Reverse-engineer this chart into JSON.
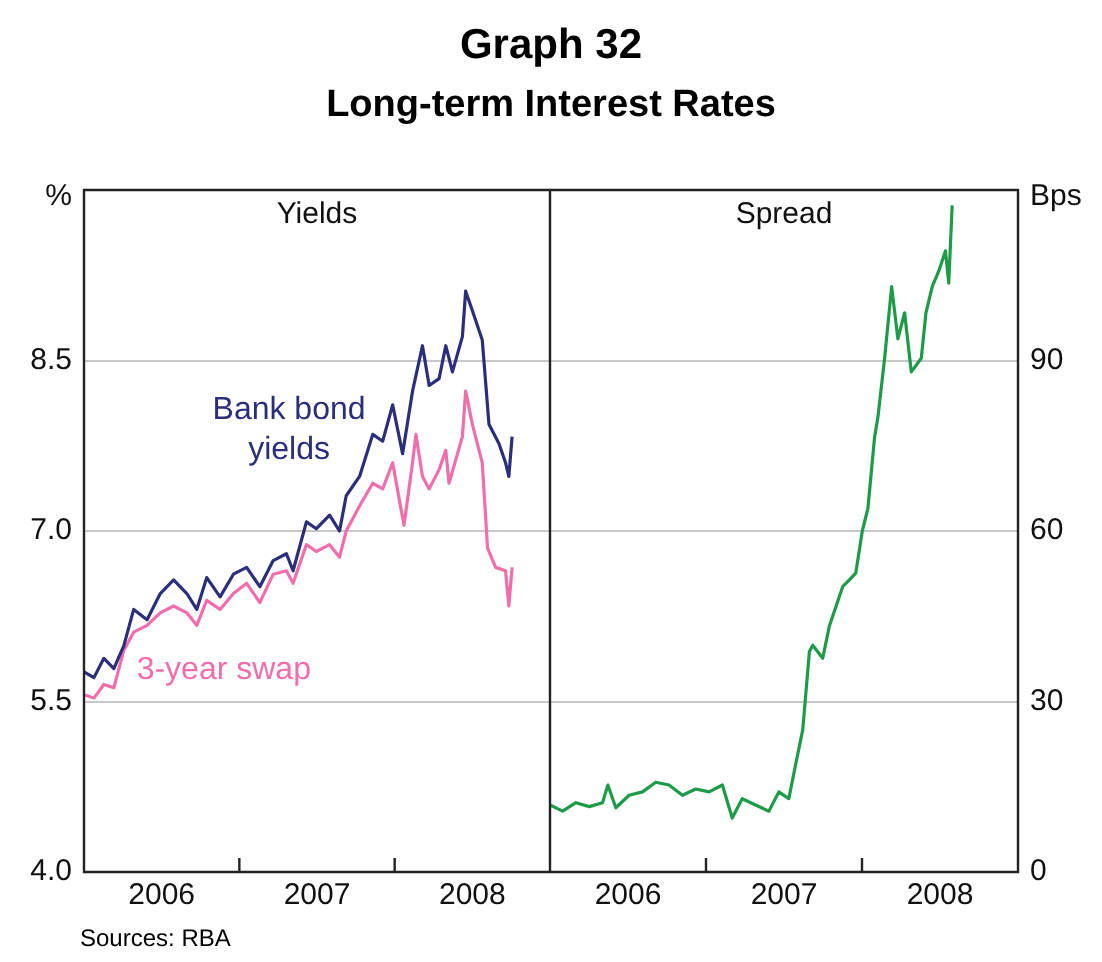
{
  "chart_data": [
    {
      "type": "line",
      "title": "Graph 32",
      "subtitle": "Long-term Interest Rates",
      "ylabel": "%",
      "annotations": [
        "Yields",
        "Sources: RBA"
      ],
      "xlim": [
        2006,
        2009
      ],
      "xticks": [
        {
          "value": 2006.5,
          "label": "2006"
        },
        {
          "value": 2007,
          "label": null
        },
        {
          "value": 2007.5,
          "label": "2007"
        },
        {
          "value": 2008,
          "label": null
        },
        {
          "value": 2008.5,
          "label": "2008"
        }
      ],
      "ylim": [
        4,
        10
      ],
      "yticks": [
        {
          "value": 4,
          "label": "4.0"
        },
        {
          "value": 5.5,
          "label": "5.5"
        },
        {
          "value": 7,
          "label": "7.0"
        },
        {
          "value": 8.5,
          "label": "8.5"
        }
      ],
      "grid": "y",
      "legend": false,
      "marker": "none",
      "line_style": "solid",
      "series": [
        {
          "name": "Bank bond yields",
          "color": "#2b2e7a",
          "x": [
            2006.0,
            2006.064,
            2006.128,
            2006.192,
            2006.256,
            2006.32,
            2006.406,
            2006.491,
            2006.577,
            2006.662,
            2006.726,
            2006.79,
            2006.876,
            2006.962,
            2007.047,
            2007.132,
            2007.218,
            2007.303,
            2007.346,
            2007.432,
            2007.496,
            2007.581,
            2007.645,
            2007.688,
            2007.774,
            2007.859,
            2007.923,
            2007.987,
            2008.051,
            2008.115,
            2008.179,
            2008.222,
            2008.286,
            2008.329,
            2008.372,
            2008.436,
            2008.457,
            2008.5,
            2008.564,
            2008.607,
            2008.671,
            2008.714,
            2008.735,
            2008.756
          ],
          "values": [
            5.76,
            5.71,
            5.88,
            5.79,
            5.99,
            6.31,
            6.22,
            6.45,
            6.57,
            6.45,
            6.31,
            6.59,
            6.42,
            6.62,
            6.68,
            6.51,
            6.74,
            6.8,
            6.65,
            7.08,
            7.02,
            7.14,
            7.0,
            7.31,
            7.48,
            7.85,
            7.79,
            8.11,
            7.68,
            8.23,
            8.63,
            8.28,
            8.34,
            8.63,
            8.4,
            8.71,
            9.11,
            8.94,
            8.68,
            7.94,
            7.77,
            7.6,
            7.48,
            7.83
          ]
        },
        {
          "name": "3-year swap",
          "color": "#f06eaa",
          "x": [
            2006.0,
            2006.064,
            2006.128,
            2006.192,
            2006.256,
            2006.32,
            2006.406,
            2006.491,
            2006.577,
            2006.662,
            2006.726,
            2006.79,
            2006.876,
            2006.962,
            2007.047,
            2007.132,
            2007.218,
            2007.303,
            2007.346,
            2007.432,
            2007.496,
            2007.581,
            2007.645,
            2007.688,
            2007.774,
            2007.859,
            2007.923,
            2007.987,
            2008.06,
            2008.115,
            2008.137,
            2008.179,
            2008.222,
            2008.286,
            2008.329,
            2008.35,
            2008.436,
            2008.457,
            2008.5,
            2008.564,
            2008.598,
            2008.65,
            2008.714,
            2008.735,
            2008.756
          ],
          "values": [
            5.56,
            5.53,
            5.65,
            5.62,
            5.95,
            6.11,
            6.17,
            6.28,
            6.34,
            6.28,
            6.17,
            6.39,
            6.31,
            6.45,
            6.54,
            6.37,
            6.62,
            6.65,
            6.54,
            6.88,
            6.82,
            6.88,
            6.77,
            7.0,
            7.22,
            7.42,
            7.37,
            7.6,
            7.05,
            7.6,
            7.85,
            7.48,
            7.37,
            7.54,
            7.71,
            7.42,
            7.83,
            8.23,
            7.94,
            7.6,
            6.85,
            6.68,
            6.65,
            6.34,
            6.68
          ]
        }
      ]
    },
    {
      "type": "line",
      "ylabel": "Bps",
      "annotations": [
        "Spread"
      ],
      "xlim": [
        2006,
        2009
      ],
      "xticks": [
        {
          "value": 2006.5,
          "label": "2006"
        },
        {
          "value": 2007,
          "label": null
        },
        {
          "value": 2007.5,
          "label": "2007"
        },
        {
          "value": 2008,
          "label": null
        },
        {
          "value": 2008.5,
          "label": "2008"
        }
      ],
      "ylim": [
        0,
        120
      ],
      "yticks": [
        0,
        30,
        60,
        90
      ],
      "grid": "y",
      "legend": false,
      "marker": "none",
      "line_style": "solid",
      "series": [
        {
          "color": "#1e9b48",
          "x": [
            2006.0,
            2006.081,
            2006.166,
            2006.252,
            2006.337,
            2006.371,
            2006.422,
            2006.507,
            2006.593,
            2006.678,
            2006.763,
            2006.849,
            2006.934,
            2007.02,
            2007.105,
            2007.168,
            2007.232,
            2007.318,
            2007.403,
            2007.467,
            2007.531,
            2007.573,
            2007.62,
            2007.663,
            2007.684,
            2007.748,
            2007.791,
            2007.876,
            2007.919,
            2007.96,
            2008.002,
            2008.038,
            2008.081,
            2008.102,
            2008.145,
            2008.19,
            2008.23,
            2008.273,
            2008.316,
            2008.38,
            2008.41,
            2008.45,
            2008.493,
            2008.535,
            2008.556,
            2008.578
          ],
          "values": [
            11.8,
            10.7,
            12.2,
            11.5,
            12.2,
            15.3,
            11.3,
            13.5,
            14.1,
            15.8,
            15.3,
            13.5,
            14.6,
            14.1,
            15.3,
            9.5,
            12.9,
            11.8,
            10.7,
            14.1,
            12.9,
            18.7,
            25,
            38.8,
            39.9,
            37.6,
            43.3,
            50.2,
            51.4,
            52.6,
            60,
            64,
            76.6,
            80,
            90.4,
            103,
            93.8,
            98.4,
            88,
            90.4,
            98.4,
            103,
            105.8,
            109.3,
            103.6,
            117.3
          ]
        }
      ]
    }
  ]
}
